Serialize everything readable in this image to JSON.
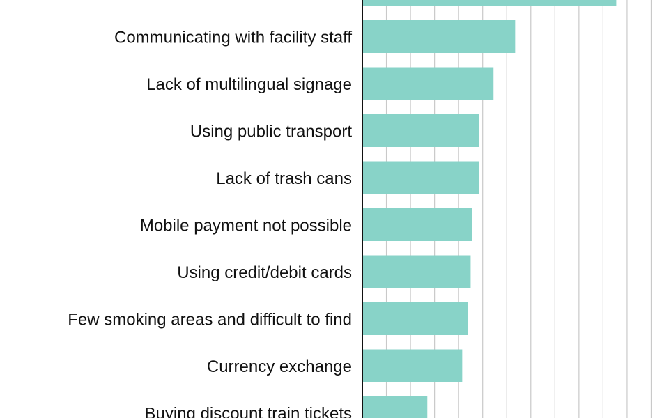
{
  "chart_data": {
    "type": "bar",
    "orientation": "horizontal",
    "title": "",
    "xlabel": "",
    "ylabel": "",
    "categories": [
      "",
      "Communicating with facility staff",
      "Lack of multilingual signage",
      "Using public transport",
      "Lack of trash cans",
      "Mobile payment not possible",
      "Using credit/debit cards",
      "Few smoking areas and difficult to find",
      "Currency exchange",
      "Buying discount train tickets"
    ],
    "values": [
      21.1,
      12.7,
      10.9,
      9.7,
      9.7,
      9.1,
      9.0,
      8.8,
      8.3,
      5.4
    ],
    "xlim": [
      0,
      24
    ],
    "grid": true,
    "bar_color": "#88d3c8",
    "gridline_color": "#c9c9c9",
    "axis_color": "#111111"
  }
}
